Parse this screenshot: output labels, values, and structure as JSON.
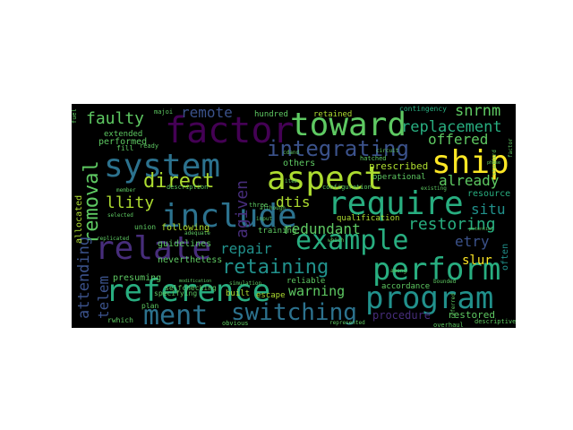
{
  "words": {
    "factor": "factor",
    "toward": "toward",
    "system": "system",
    "aspect": "aspect",
    "ship": "ship",
    "include": "include",
    "require": "require",
    "relate": "relate",
    "example": "example",
    "perform": "perform",
    "reference": "reference",
    "program": "program",
    "ment": "ment",
    "switching": "switching",
    "integrating": "integrating",
    "direct": "direct",
    "retaining": "retaining",
    "removal": "removal",
    "faulty": "faulty",
    "remote": "remote",
    "snrnm": "snrnm",
    "replacement": "replacement",
    "offered": "offered",
    "already": "already",
    "restoring": "restoring",
    "redundant": "redundant",
    "warning": "warning",
    "repair": "repair",
    "dtis": "dtis",
    "attending": "attending",
    "telem": "telem",
    "situ": "situ",
    "etry": "etry",
    "llity": "llity",
    "agiven": "agiven",
    "prescribed": "prescribed",
    "others": "others",
    "retained": "retained",
    "hundred": "hundred",
    "performed": "performed",
    "allocated": "allocated",
    "presuming": "presuming",
    "nevertheless": "nevertheless",
    "guidelines": "guidelines",
    "following": "following",
    "procedure": "procedure",
    "restored": "restored",
    "resource": "resource",
    "slur": "slur",
    "often": "often",
    "escape": "escape",
    "reliable": "reliable",
    "accordance": "accordance",
    "qualification": "qualification",
    "operational": "operational",
    "built": "built",
    "training": "training",
    "plan": "plan",
    "rwhich": "rwhich",
    "specifying": "specifying",
    "union": "union",
    "selfchecking": "selfchecking",
    "extended": "extended",
    "fill": "fill",
    "contingency": "contingency",
    "three": "three",
    "description": "description",
    "configuration": "configuration",
    "descriptive": "descriptive",
    "overhaul": "overhaul",
    "represented": "represented",
    "obvious": "obvious",
    "hatched": "hatched",
    "item": "item",
    "input": "input",
    "simulation": "simulation",
    "bounded": "bounded",
    "cdand": "cdand",
    "majoi": "majoi",
    "fuel": "fuel",
    "ready": "ready",
    "replicated": "replicated",
    "selected": "selected",
    "member": "member",
    "among": "among",
    "referred": "referred",
    "standard": "standard",
    "circuit": "circuit",
    "existing": "existing",
    "modification": "modification",
    "potential": "potential",
    "phase": "phase",
    "factor2": "factor",
    "although": "although",
    "adequate": "adequate",
    "which": "which"
  },
  "colors": {
    "background": "#000000",
    "purple": "#440154",
    "indigo": "#472d7b",
    "blue": "#3b528b",
    "steel": "#2c728e",
    "teal": "#21918c",
    "green": "#28ae80",
    "lime": "#5ec962",
    "yellow": "#fde725",
    "olive": "#addc30"
  }
}
